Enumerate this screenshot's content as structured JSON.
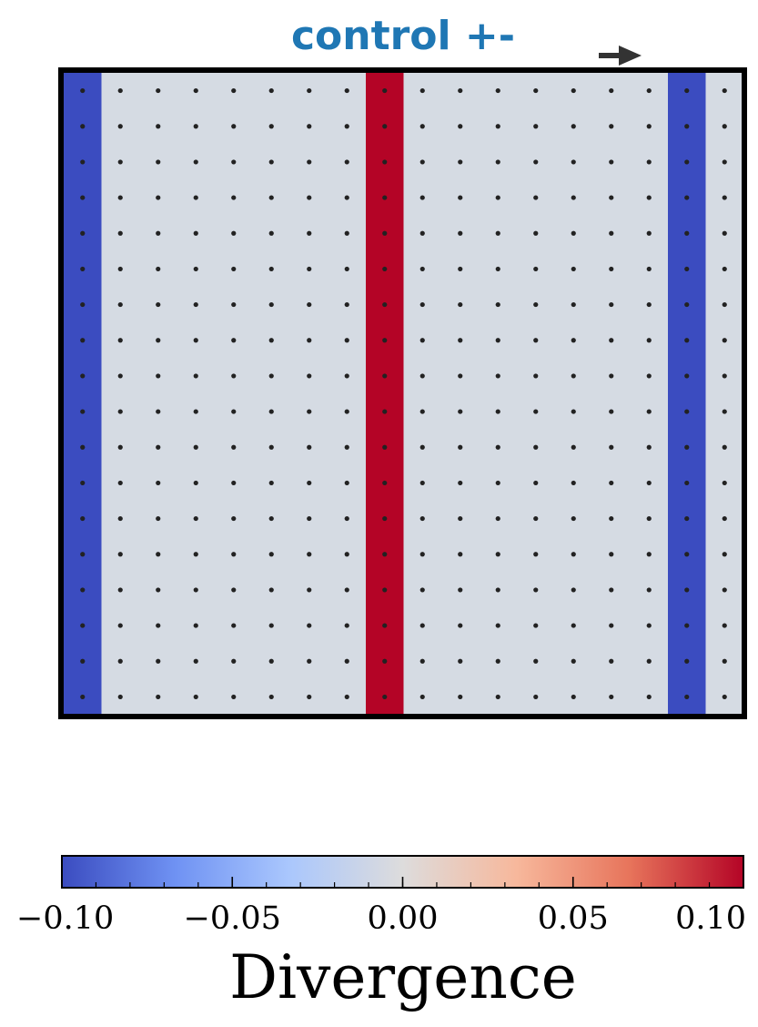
{
  "chart_data": {
    "type": "heatmap",
    "title": "control +-",
    "title_color": "#1f77b4",
    "grid": {
      "cols": 18,
      "rows": 18,
      "column_values": [
        -0.1,
        0,
        0,
        0,
        0,
        0,
        0,
        0,
        0.1,
        0,
        0,
        0,
        0,
        0,
        0,
        0,
        -0.1,
        0
      ],
      "point_markers": true,
      "direction_arrow": "right"
    },
    "colorbar": {
      "label": "Divergence",
      "range": [
        -0.1,
        0.1
      ],
      "tick_values": [
        -0.1,
        -0.05,
        0,
        0.05,
        0.1
      ],
      "tick_labels": [
        "−0.10",
        "−0.05",
        "0.00",
        "0.05",
        "0.10"
      ],
      "colormap": "coolwarm",
      "colormap_stops": [
        "#3b4cc0",
        "#6f92f3",
        "#aac7fd",
        "#dddcdc",
        "#f7b89c",
        "#e7745b",
        "#b40426"
      ]
    },
    "colors": {
      "negative": "#3b4cc0",
      "neutral": "#d5dbe3",
      "positive": "#b40426",
      "marker": "#222222",
      "frame": "#000000"
    }
  }
}
